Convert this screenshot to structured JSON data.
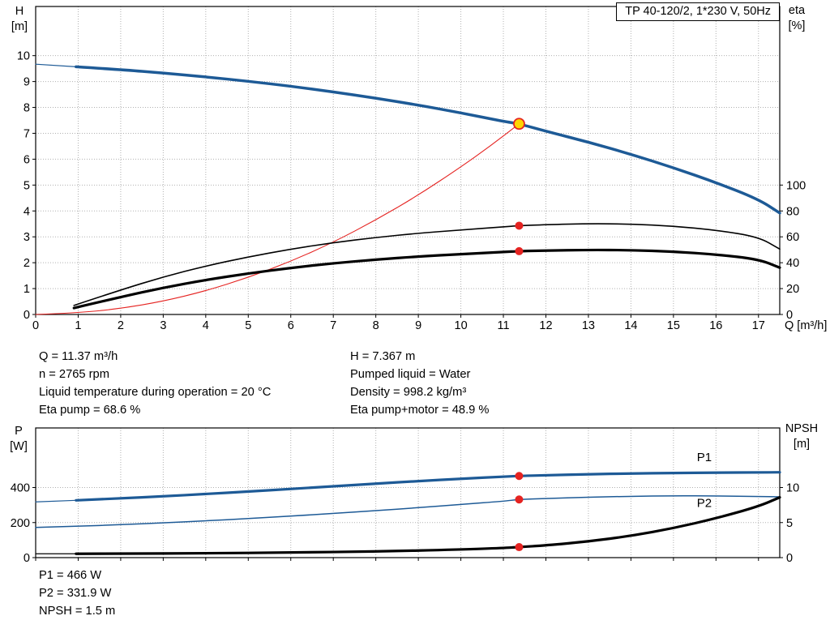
{
  "colors": {
    "blue": "#1d5a96",
    "red": "#e52321",
    "black": "#000000",
    "yellow": "#ffd500",
    "grid": "#b0b0b0",
    "text": "#000000"
  },
  "operating_point_text": {
    "left": [
      "Q = 11.37 m³/h",
      "n = 2765 rpm",
      "Liquid temperature during operation = 20 °C",
      "Eta pump = 68.6 %"
    ],
    "right": [
      "H = 7.367 m",
      "Pumped liquid = Water",
      "Density = 998.2 kg/m³",
      "Eta pump+motor = 48.9 %"
    ]
  },
  "bottom_text": [
    "P1 = 466 W",
    "P2 = 331.9 W",
    "NPSH = 1.5 m"
  ],
  "chart_data": [
    {
      "type": "line",
      "title": "TP 40-120/2, 1*230 V, 50Hz",
      "xlabel": "Q [m³/h]",
      "ylabel_left_1": "H",
      "ylabel_left_2": "[m]",
      "ylabel_right_1": "eta",
      "ylabel_right_2": "[%]",
      "xlim": [
        0,
        17.5
      ],
      "ylim": [
        0,
        11.9
      ],
      "x_grid": [
        1,
        2,
        3,
        4,
        5,
        6,
        7,
        8,
        9,
        10,
        11,
        12,
        13,
        14,
        15,
        16,
        17
      ],
      "x_labels": [
        0,
        1,
        2,
        3,
        4,
        5,
        6,
        7,
        8,
        9,
        10,
        11,
        12,
        13,
        14,
        15,
        16,
        17
      ],
      "y_grid": [
        1,
        2,
        3,
        4,
        5,
        6,
        7,
        8,
        9,
        10
      ],
      "y_labels": [
        0,
        1,
        2,
        3,
        4,
        5,
        6,
        7,
        8,
        9,
        10
      ],
      "right_labels": [
        0,
        20,
        40,
        60,
        80,
        100
      ],
      "right_scale": 0.05,
      "series": [
        {
          "name": "head-curve-thin-lead",
          "color": "blue",
          "width": 1.2,
          "yscale": 1,
          "x": [
            0,
            0.95
          ],
          "y": [
            9.67,
            9.57
          ]
        },
        {
          "name": "head-curve",
          "color": "blue",
          "width": 3.5,
          "yscale": 1,
          "x": [
            0.95,
            2,
            3,
            4,
            5,
            6,
            7,
            8,
            9,
            10,
            11,
            11.37,
            12,
            13,
            14,
            15,
            16,
            17,
            17.5
          ],
          "y": [
            9.57,
            9.46,
            9.33,
            9.18,
            9.01,
            8.82,
            8.6,
            8.36,
            8.09,
            7.79,
            7.46,
            7.367,
            7.08,
            6.66,
            6.19,
            5.67,
            5.1,
            4.45,
            3.92
          ]
        },
        {
          "name": "system-curve",
          "color": "red",
          "width": 1.1,
          "yscale": 1,
          "x": [
            0,
            1,
            2,
            3,
            4,
            5,
            6,
            7,
            8,
            9,
            10,
            10.7,
            11.37
          ],
          "y": [
            0,
            0.06,
            0.23,
            0.51,
            0.91,
            1.43,
            2.05,
            2.79,
            3.65,
            4.61,
            5.7,
            6.52,
            7.367
          ]
        },
        {
          "name": "eta-pump-curve",
          "color": "black",
          "width": 1.6,
          "yscale": 0.05,
          "x": [
            0.9,
            2,
            3,
            4,
            5,
            6,
            7,
            8,
            9,
            10,
            11,
            11.37,
            12,
            13,
            14,
            15,
            16,
            17,
            17.5
          ],
          "y": [
            7,
            19,
            29,
            37.5,
            44.5,
            50.5,
            55.5,
            59.5,
            62.8,
            65.3,
            67.7,
            68.6,
            69.4,
            70.2,
            69.9,
            68.3,
            65.2,
            60,
            50.5
          ]
        },
        {
          "name": "eta-pump-motor-curve",
          "color": "black",
          "width": 3.2,
          "yscale": 0.05,
          "x": [
            0.9,
            2,
            3,
            4,
            5,
            6,
            7,
            8,
            9,
            10,
            11,
            11.37,
            12,
            13,
            14,
            15,
            16,
            17,
            17.5
          ],
          "y": [
            5,
            13.5,
            20.7,
            26.7,
            31.7,
            36,
            39.6,
            42.4,
            44.8,
            46.6,
            48.3,
            48.9,
            49.4,
            49.9,
            49.7,
            48.6,
            46.4,
            42.7,
            36.2
          ]
        }
      ],
      "markers": [
        {
          "name": "eta-pump-duty-dot",
          "type": "dot",
          "x": 11.37,
          "y": 68.6,
          "yscale": 0.05,
          "r": 5
        },
        {
          "name": "eta-pump-motor-duty-dot",
          "type": "dot",
          "x": 11.37,
          "y": 48.9,
          "yscale": 0.05,
          "r": 5
        },
        {
          "name": "duty-point-marker",
          "type": "ring",
          "x": 11.37,
          "y": 7.367,
          "yscale": 1,
          "r": 6.5
        }
      ],
      "annotations": []
    },
    {
      "type": "line",
      "ylabel_left_1": "P",
      "ylabel_left_2": "[W]",
      "ylabel_right_1": "NPSH",
      "ylabel_right_2": "[m]",
      "xlim": [
        0,
        17.5
      ],
      "ylim": [
        0,
        740
      ],
      "x_grid": [
        1,
        2,
        3,
        4,
        5,
        6,
        7,
        8,
        9,
        10,
        11,
        12,
        13,
        14,
        15,
        16,
        17
      ],
      "x_labels": [],
      "y_grid": [
        200,
        400
      ],
      "y_labels": [
        0,
        200,
        400
      ],
      "right_labels": [
        0,
        5,
        10
      ],
      "right_scale": 40,
      "series": [
        {
          "name": "p1-curve-thin-lead",
          "color": "blue",
          "width": 1.2,
          "yscale": 1,
          "x": [
            0,
            0.95
          ],
          "y": [
            318,
            327
          ]
        },
        {
          "name": "p1-curve",
          "color": "blue",
          "width": 3.2,
          "yscale": 1,
          "x": [
            0.95,
            2,
            3,
            4,
            5,
            6,
            7,
            8,
            9,
            10,
            11,
            11.37,
            12,
            13,
            14,
            15,
            16,
            17,
            17.5
          ],
          "y": [
            327,
            338,
            350,
            363,
            377,
            392,
            407,
            422,
            437,
            450,
            462,
            466,
            470,
            476,
            480,
            483,
            485,
            486,
            487
          ]
        },
        {
          "name": "p2-curve",
          "color": "blue",
          "width": 1.5,
          "yscale": 1,
          "x": [
            0,
            1,
            2,
            3,
            4,
            5,
            6,
            7,
            8,
            9,
            10,
            11,
            11.37,
            12,
            13,
            14,
            15,
            16,
            17,
            17.5
          ],
          "y": [
            172,
            179,
            188,
            198,
            210,
            223,
            237,
            252,
            268,
            285,
            303,
            322,
            331.9,
            337,
            345,
            350,
            353,
            352,
            349,
            347
          ]
        },
        {
          "name": "npsh-curve-thin-lead",
          "color": "black",
          "width": 1.2,
          "yscale": 40,
          "x": [
            0,
            0.95
          ],
          "y": [
            0.55,
            0.55
          ]
        },
        {
          "name": "npsh-curve",
          "color": "black",
          "width": 3.2,
          "yscale": 40,
          "x": [
            0.95,
            2,
            4,
            6,
            8,
            10,
            11,
            11.37,
            12,
            13,
            14,
            15,
            16,
            17,
            17.5
          ],
          "y": [
            0.55,
            0.56,
            0.62,
            0.72,
            0.88,
            1.15,
            1.38,
            1.5,
            1.75,
            2.3,
            3.1,
            4.2,
            5.6,
            7.3,
            8.6
          ]
        }
      ],
      "markers": [
        {
          "name": "p1-duty-dot",
          "type": "dot",
          "x": 11.37,
          "y": 466,
          "yscale": 1,
          "r": 5
        },
        {
          "name": "p2-duty-dot",
          "type": "dot",
          "x": 11.37,
          "y": 331.9,
          "yscale": 1,
          "r": 5
        },
        {
          "name": "npsh-duty-dot",
          "type": "dot",
          "x": 11.37,
          "y": 1.5,
          "yscale": 40,
          "r": 5
        }
      ],
      "annotations": [
        {
          "name": "p1-curve-label",
          "text": "P1",
          "x": 15.55,
          "y": 550,
          "color": "blue"
        },
        {
          "name": "p2-curve-label",
          "text": "P2",
          "x": 15.55,
          "y": 290,
          "color": "blue"
        }
      ]
    }
  ]
}
